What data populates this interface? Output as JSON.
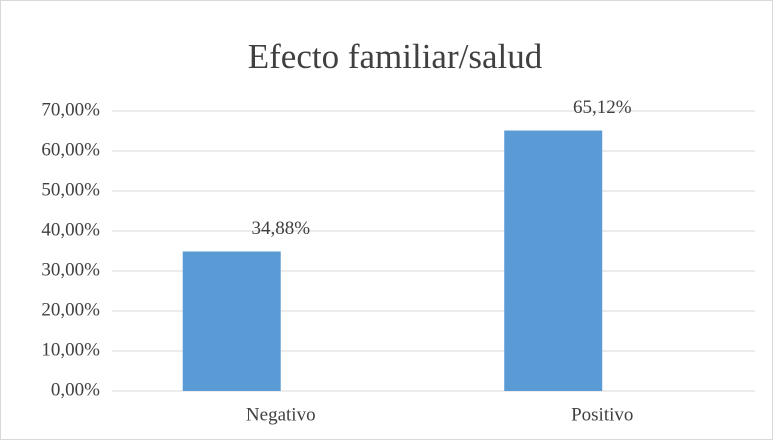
{
  "chart_data": {
    "type": "bar",
    "title": "Efecto familiar/salud",
    "categories": [
      "Negativo",
      "Positivo"
    ],
    "values": [
      34.88,
      65.12
    ],
    "value_labels": [
      "34,88%",
      "65,12%"
    ],
    "color": "#5b9bd5",
    "ylim": [
      0,
      70
    ],
    "yticks": [
      {
        "value": 0,
        "label": "0,00%"
      },
      {
        "value": 10,
        "label": "10,00%"
      },
      {
        "value": 20,
        "label": "20,00%"
      },
      {
        "value": 30,
        "label": "30,00%"
      },
      {
        "value": 40,
        "label": "40,00%"
      },
      {
        "value": 50,
        "label": "50,00%"
      },
      {
        "value": 60,
        "label": "60,00%"
      },
      {
        "value": 70,
        "label": "70,00%"
      }
    ],
    "grid": true
  }
}
